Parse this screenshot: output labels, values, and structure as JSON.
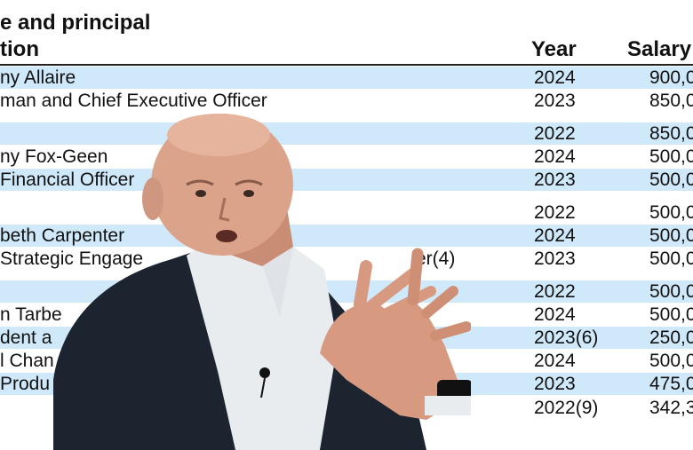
{
  "header": {
    "line1": "e and principal",
    "line2": "tion",
    "year": "Year",
    "salary": "Salary"
  },
  "rows": [
    {
      "name": "ny Allaire",
      "year": "2024",
      "salary": "900,0"
    },
    {
      "name": "man and Chief Executive Officer",
      "year": "2023",
      "salary": "850,0"
    },
    {
      "name": "",
      "year": "2022",
      "salary": "850,0"
    },
    {
      "name": "ny Fox-Geen",
      "year": "2024",
      "salary": "500,0"
    },
    {
      "name": "Financial Officer",
      "year": "2023",
      "salary": "500,0"
    },
    {
      "name": "",
      "year": "2022",
      "salary": "500,0"
    },
    {
      "name": "beth Carpenter",
      "year": "2024",
      "salary": "500,0"
    },
    {
      "name": "Strategic Engage",
      "name2": "er(4)",
      "year": "2023",
      "salary": "500,0"
    },
    {
      "name": "",
      "year": "2022",
      "salary": "500,0"
    },
    {
      "name": "n Tarbe",
      "year": "2024",
      "salary": "500,0"
    },
    {
      "name": "dent a",
      "year": "2023(6)",
      "salary": "250,0"
    },
    {
      "name": "l Chan",
      "year": "2024",
      "salary": "500,0"
    },
    {
      "name": "Produ",
      "year": "2023",
      "salary": "475,0"
    },
    {
      "name": "",
      "year": "2022(9)",
      "salary": "342,3"
    }
  ],
  "colors": {
    "row_shade": "#cfe8fa",
    "text": "#111111",
    "suit": "#1c2430",
    "skin": "#d9a088"
  }
}
